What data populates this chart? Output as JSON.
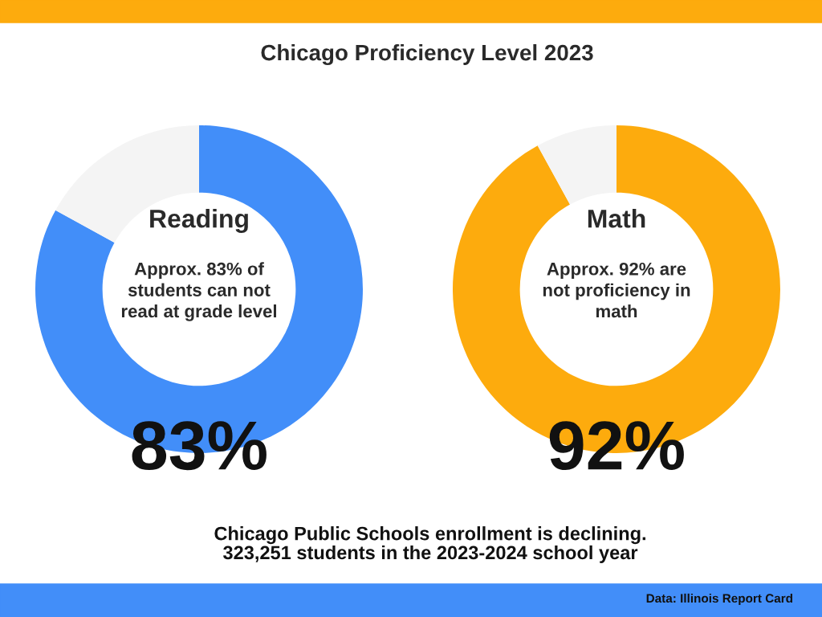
{
  "chart_data": [
    {
      "type": "other",
      "title": "Chicago Proficiency Level 2023",
      "annotations": [
        "Chicago Public Schools enrollment is declining.\n323,251 students in the 2023-2024 school year",
        "Data: Illinois Report Card"
      ]
    },
    {
      "type": "donut",
      "title": "Reading",
      "annotations": [
        "Approx. 83% of\nstudents can not\nread at grade level"
      ],
      "categories": [
        null,
        null
      ],
      "values": [
        83,
        17
      ],
      "colors": [
        "#428ef9",
        "#f4f4f4"
      ],
      "value_labels": [
        "83%",
        null
      ]
    },
    {
      "type": "donut",
      "title": "Math",
      "annotations": [
        "Approx. 92% are\nnot proficiency in\nmath"
      ],
      "categories": [
        null,
        null
      ],
      "values": [
        92,
        8
      ],
      "colors": [
        "#fdab0d",
        "#f4f4f4"
      ],
      "value_labels": [
        "92%",
        null
      ]
    }
  ]
}
